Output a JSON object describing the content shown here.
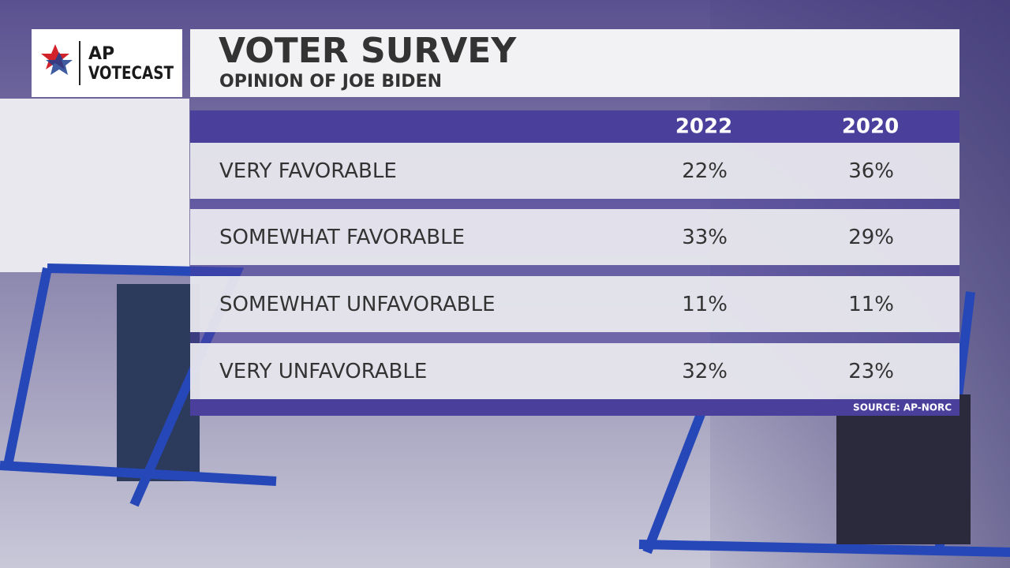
{
  "logo": {
    "line1": "AP",
    "line2": "VOTECAST"
  },
  "header": {
    "title": "VOTER SURVEY",
    "subtitle": "OPINION OF JOE BIDEN"
  },
  "table": {
    "columns": [
      "2022",
      "2020"
    ],
    "rows": [
      {
        "label": "VERY FAVORABLE",
        "values": [
          "22%",
          "36%"
        ]
      },
      {
        "label": "SOMEWHAT FAVORABLE",
        "values": [
          "33%",
          "29%"
        ]
      },
      {
        "label": "SOMEWHAT UNFAVORABLE",
        "values": [
          "11%",
          "11%"
        ]
      },
      {
        "label": "VERY UNFAVORABLE",
        "values": [
          "32%",
          "23%"
        ]
      }
    ]
  },
  "source": "SOURCE:  AP-NORC"
}
